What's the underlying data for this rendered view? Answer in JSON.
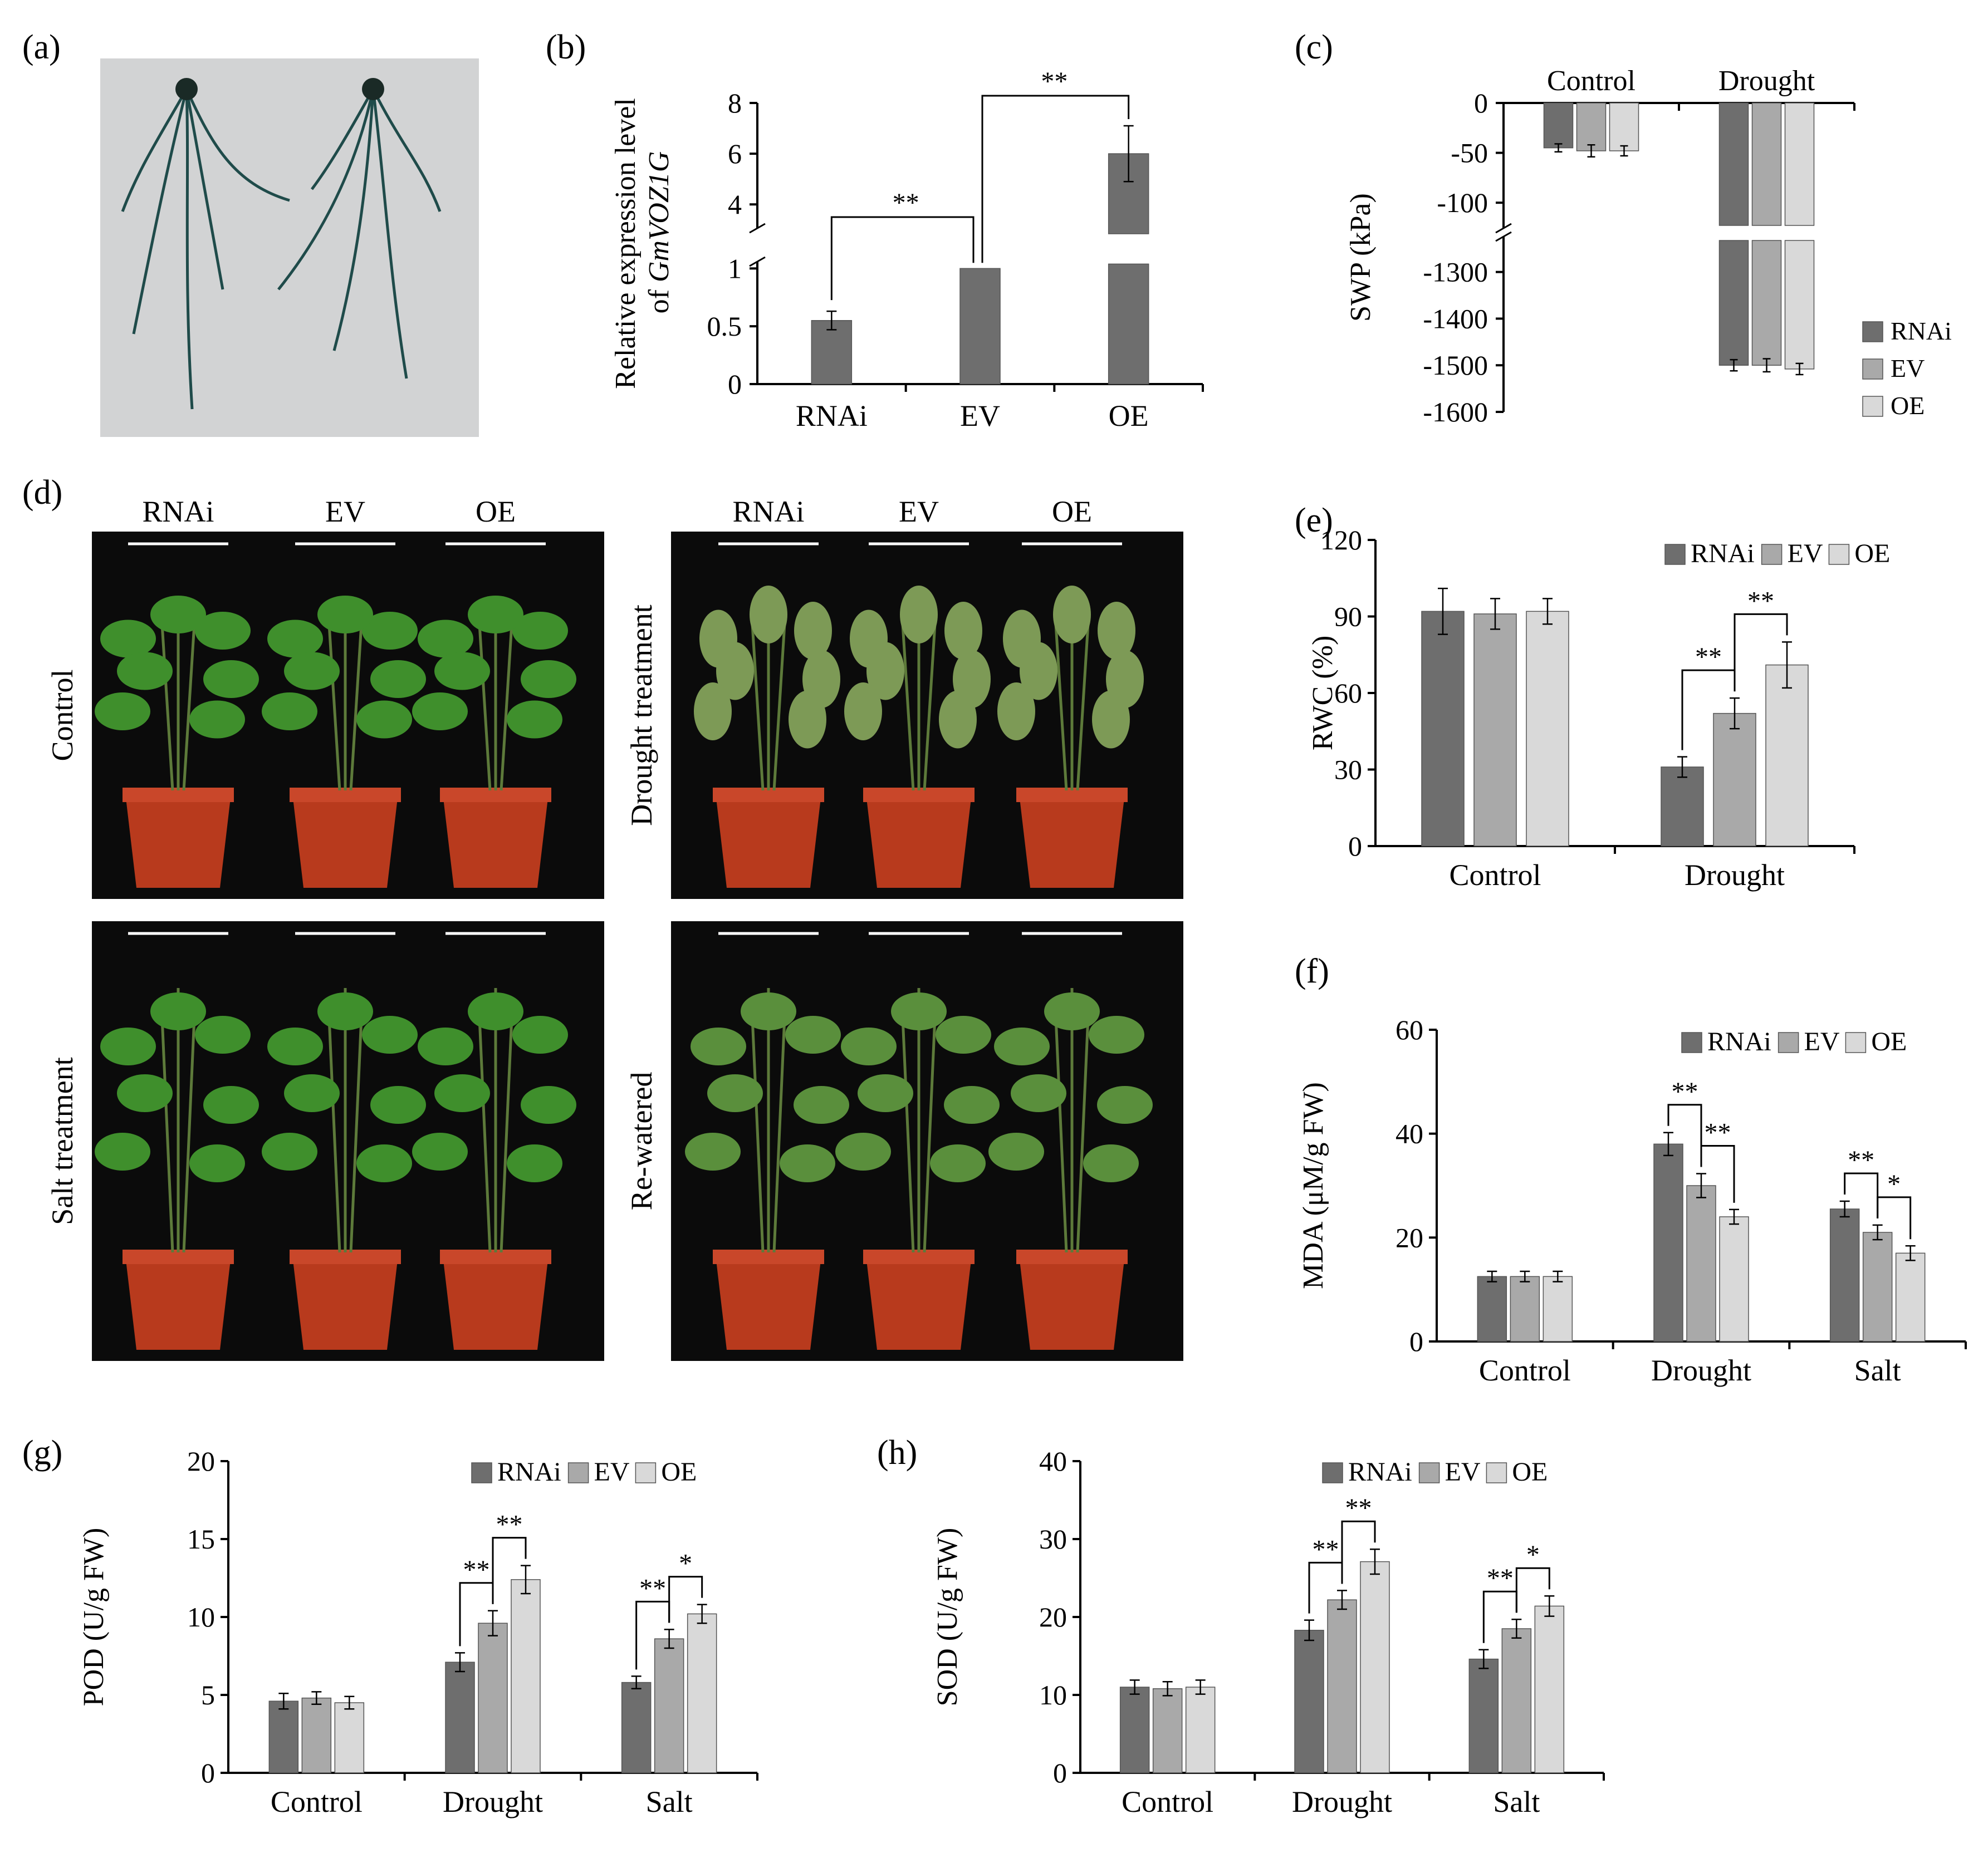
{
  "colors": {
    "rnai": "#6e6e6e",
    "ev": "#a9a9a9",
    "oe": "#d9d9d9",
    "photo_bg": "#0b0b0b",
    "pot": "#b83a1d",
    "leaf": "#3f8f2c",
    "root_bg": "#d2d3d4"
  },
  "panels": {
    "a": {
      "letter": "(a)"
    },
    "d": {
      "letter": "(d)",
      "column_labels": [
        "RNAi",
        "EV",
        "OE"
      ],
      "photos": [
        {
          "label": "Control",
          "condition": "healthy"
        },
        {
          "label": "Drought treatment",
          "condition": "wilted"
        },
        {
          "label": "Salt treatment",
          "condition": "healthy"
        },
        {
          "label": "Re-watered",
          "condition": "recovering"
        }
      ]
    }
  },
  "chart_data": [
    {
      "id": "b",
      "letter": "(b)",
      "type": "bar",
      "categories": [
        "RNAi",
        "EV",
        "OE"
      ],
      "values": [
        0.55,
        1.0,
        6.0
      ],
      "errors": [
        0.08,
        0.0,
        1.1
      ],
      "ylabel_line1": "Relative expression level",
      "ylabel_line2_prefix": "of ",
      "ylabel_line2_italic": "GmVOZ1G",
      "broken_axis": {
        "lower_ticks": [
          "0",
          "0.5",
          "1"
        ],
        "upper_ticks": [
          "4",
          "6",
          "8"
        ],
        "lower_range": [
          0,
          1.3
        ],
        "upper_range": [
          3.5,
          8
        ]
      },
      "significance": [
        {
          "from": 0,
          "to": 1,
          "label": "**"
        },
        {
          "from": 1,
          "to": 2,
          "label": "**"
        }
      ]
    },
    {
      "id": "c",
      "letter": "(c)",
      "type": "bar",
      "categories": [
        "Control",
        "Drought"
      ],
      "series": [
        {
          "name": "RNAi",
          "values": [
            -45,
            -1500
          ],
          "errors": [
            4,
            12
          ]
        },
        {
          "name": "EV",
          "values": [
            -48,
            -1500
          ],
          "errors": [
            6,
            14
          ]
        },
        {
          "name": "OE",
          "values": [
            -48,
            -1508
          ],
          "errors": [
            5,
            12
          ]
        }
      ],
      "ylabel": "SWP (kPa)",
      "broken_axis": {
        "upper_ticks": [
          "0",
          "-50",
          "-100"
        ],
        "lower_ticks": [
          "-1300",
          "-1400",
          "-1500",
          "-1600"
        ],
        "upper_range": [
          -120,
          0
        ],
        "lower_range": [
          -1600,
          -1230
        ]
      },
      "legend": [
        "RNAi",
        "EV",
        "OE"
      ]
    },
    {
      "id": "e",
      "letter": "(e)",
      "type": "bar",
      "categories": [
        "Control",
        "Drought"
      ],
      "series": [
        {
          "name": "RNAi",
          "values": [
            92,
            31
          ],
          "errors": [
            9,
            4
          ]
        },
        {
          "name": "EV",
          "values": [
            91,
            52
          ],
          "errors": [
            6,
            6
          ]
        },
        {
          "name": "OE",
          "values": [
            92,
            71
          ],
          "errors": [
            5,
            9
          ]
        }
      ],
      "ylabel": "RWC (%)",
      "ylim": [
        0,
        120
      ],
      "yticks": [
        "0",
        "30",
        "60",
        "90",
        "120"
      ],
      "legend": [
        "RNAi",
        "EV",
        "OE"
      ],
      "significance": [
        {
          "cat": 1,
          "from": 0,
          "to": 1,
          "label": "**"
        },
        {
          "cat": 1,
          "from": 1,
          "to": 2,
          "label": "**"
        }
      ]
    },
    {
      "id": "f",
      "letter": "(f)",
      "type": "bar",
      "categories": [
        "Control",
        "Drought",
        "Salt"
      ],
      "series": [
        {
          "name": "RNAi",
          "values": [
            12.5,
            38,
            25.5
          ],
          "errors": [
            1,
            2.2,
            1.5
          ]
        },
        {
          "name": "EV",
          "values": [
            12.5,
            30,
            21
          ],
          "errors": [
            1,
            2.3,
            1.4
          ]
        },
        {
          "name": "OE",
          "values": [
            12.5,
            24,
            17
          ],
          "errors": [
            1,
            1.4,
            1.4
          ]
        }
      ],
      "ylabel": "MDA (μM/g FW)",
      "ylim": [
        0,
        60
      ],
      "yticks": [
        "0",
        "20",
        "40",
        "60"
      ],
      "legend": [
        "RNAi",
        "EV",
        "OE"
      ],
      "significance": [
        {
          "cat": 1,
          "from": 0,
          "to": 1,
          "label": "**"
        },
        {
          "cat": 1,
          "from": 1,
          "to": 2,
          "label": "**"
        },
        {
          "cat": 2,
          "from": 0,
          "to": 1,
          "label": "**"
        },
        {
          "cat": 2,
          "from": 1,
          "to": 2,
          "label": "*"
        }
      ]
    },
    {
      "id": "g",
      "letter": "(g)",
      "type": "bar",
      "categories": [
        "Control",
        "Drought",
        "Salt"
      ],
      "series": [
        {
          "name": "RNAi",
          "values": [
            4.6,
            7.1,
            5.8
          ],
          "errors": [
            0.5,
            0.6,
            0.4
          ]
        },
        {
          "name": "EV",
          "values": [
            4.8,
            9.6,
            8.6
          ],
          "errors": [
            0.4,
            0.8,
            0.6
          ]
        },
        {
          "name": "OE",
          "values": [
            4.5,
            12.4,
            10.2
          ],
          "errors": [
            0.4,
            0.9,
            0.6
          ]
        }
      ],
      "ylabel": "POD (U/g FW)",
      "ylim": [
        0,
        20
      ],
      "yticks": [
        "0",
        "5",
        "10",
        "15",
        "20"
      ],
      "legend": [
        "RNAi",
        "EV",
        "OE"
      ],
      "significance": [
        {
          "cat": 1,
          "from": 0,
          "to": 1,
          "label": "**"
        },
        {
          "cat": 1,
          "from": 1,
          "to": 2,
          "label": "**"
        },
        {
          "cat": 2,
          "from": 0,
          "to": 1,
          "label": "**"
        },
        {
          "cat": 2,
          "from": 1,
          "to": 2,
          "label": "*"
        }
      ]
    },
    {
      "id": "h",
      "letter": "(h)",
      "type": "bar",
      "categories": [
        "Control",
        "Drought",
        "Salt"
      ],
      "series": [
        {
          "name": "RNAi",
          "values": [
            11,
            18.3,
            14.6
          ],
          "errors": [
            0.9,
            1.3,
            1.2
          ]
        },
        {
          "name": "EV",
          "values": [
            10.8,
            22.2,
            18.5
          ],
          "errors": [
            0.9,
            1.2,
            1.2
          ]
        },
        {
          "name": "OE",
          "values": [
            11,
            27.1,
            21.4
          ],
          "errors": [
            0.9,
            1.6,
            1.3
          ]
        }
      ],
      "ylabel": "SOD (U/g FW)",
      "ylim": [
        0,
        40
      ],
      "yticks": [
        "0",
        "10",
        "20",
        "30",
        "40"
      ],
      "legend": [
        "RNAi",
        "EV",
        "OE"
      ],
      "significance": [
        {
          "cat": 1,
          "from": 0,
          "to": 1,
          "label": "**"
        },
        {
          "cat": 1,
          "from": 1,
          "to": 2,
          "label": "**"
        },
        {
          "cat": 2,
          "from": 0,
          "to": 1,
          "label": "**"
        },
        {
          "cat": 2,
          "from": 1,
          "to": 2,
          "label": "*"
        }
      ]
    }
  ]
}
